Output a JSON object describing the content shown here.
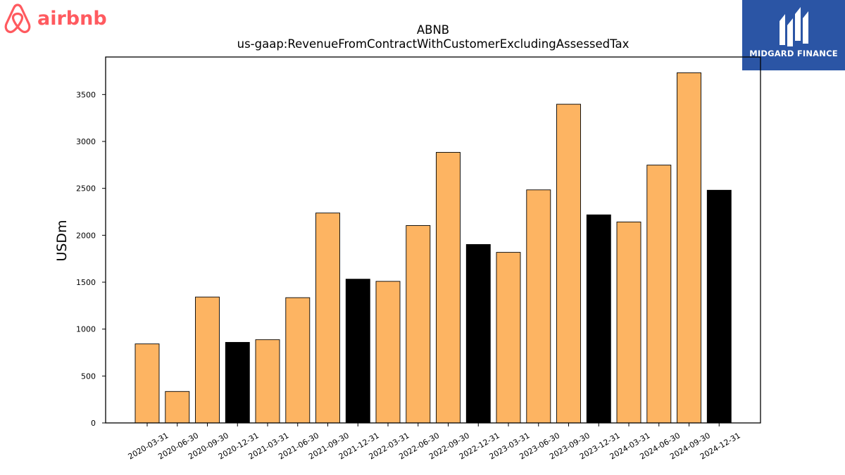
{
  "logos": {
    "left_brand": "airbnb",
    "right_brand": "MIDGARD FINANCE"
  },
  "colors": {
    "quarter_bar": "#fdb462",
    "year_end_bar": "#000000",
    "bar_edge": "#000000",
    "airbnb_brand": "#ff5a5f",
    "midgard_bg": "#2b55a5"
  },
  "chart_data": {
    "type": "bar",
    "title": "ABNB",
    "subtitle": "us-gaap:RevenueFromContractWithCustomerExcludingAssessedTax",
    "xlabel": "",
    "ylabel": "USDm",
    "ylim": [
      0,
      3900
    ],
    "yticks": [
      0,
      500,
      1000,
      1500,
      2000,
      2500,
      3000,
      3500
    ],
    "grid": false,
    "legend": "none",
    "categories": [
      "2020-03-31",
      "2020-06-30",
      "2020-09-30",
      "2020-12-31",
      "2021-03-31",
      "2021-06-30",
      "2021-09-30",
      "2021-12-31",
      "2022-03-31",
      "2022-06-30",
      "2022-09-30",
      "2022-12-31",
      "2023-03-31",
      "2023-06-30",
      "2023-09-30",
      "2023-12-31",
      "2024-03-31",
      "2024-06-30",
      "2024-09-30",
      "2024-12-31"
    ],
    "values": [
      842,
      335,
      1342,
      859,
      887,
      1335,
      2237,
      1532,
      1509,
      2104,
      2884,
      1902,
      1818,
      2484,
      3397,
      2218,
      2142,
      2748,
      3732,
      2480
    ],
    "highlight": [
      false,
      false,
      false,
      true,
      false,
      false,
      false,
      true,
      false,
      false,
      false,
      true,
      false,
      false,
      false,
      true,
      false,
      false,
      false,
      true
    ]
  }
}
